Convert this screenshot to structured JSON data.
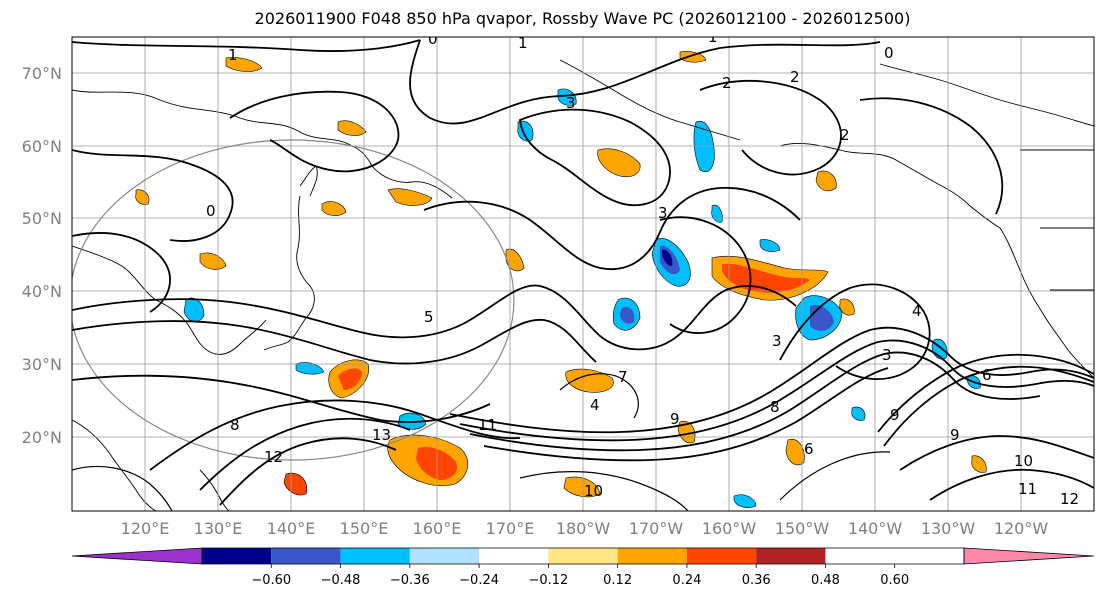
{
  "title": "2026011900 F048 850 hPa qvapor, Rossby Wave PC (2026012100 - 2026012500)",
  "map": {
    "lat_labels": [
      "70°N",
      "60°N",
      "50°N",
      "40°N",
      "30°N",
      "20°N"
    ],
    "lon_labels": [
      "120°E",
      "130°E",
      "140°E",
      "150°E",
      "160°E",
      "170°E",
      "180°W",
      "170°W",
      "160°W",
      "150°W",
      "140°W",
      "130°W",
      "120°W"
    ],
    "contour_labels": [
      "1",
      "0",
      "1",
      "1",
      "0",
      "2",
      "2",
      "0",
      "3",
      "3",
      "2",
      "3",
      "3",
      "4",
      "5",
      "7",
      "9",
      "11",
      "13",
      "12",
      "10",
      "8",
      "6",
      "4",
      "10",
      "11",
      "12",
      "9",
      "6",
      "9",
      "8"
    ],
    "colors": {
      "grid": "#9a9a9a",
      "axis_labels": "#808080"
    }
  },
  "colorbar": {
    "levels": [
      "−0.60",
      "−0.48",
      "−0.36",
      "−0.24",
      "−0.12",
      "0.12",
      "0.24",
      "0.36",
      "0.48",
      "0.60"
    ],
    "colors": [
      "#9933cc",
      "#00008b",
      "#3a57c9",
      "#00bfff",
      "#b0e2ff",
      "#ffffff",
      "#ffe78a",
      "#ffa500",
      "#ff4500",
      "#b22222",
      "#ff88aa"
    ]
  }
}
